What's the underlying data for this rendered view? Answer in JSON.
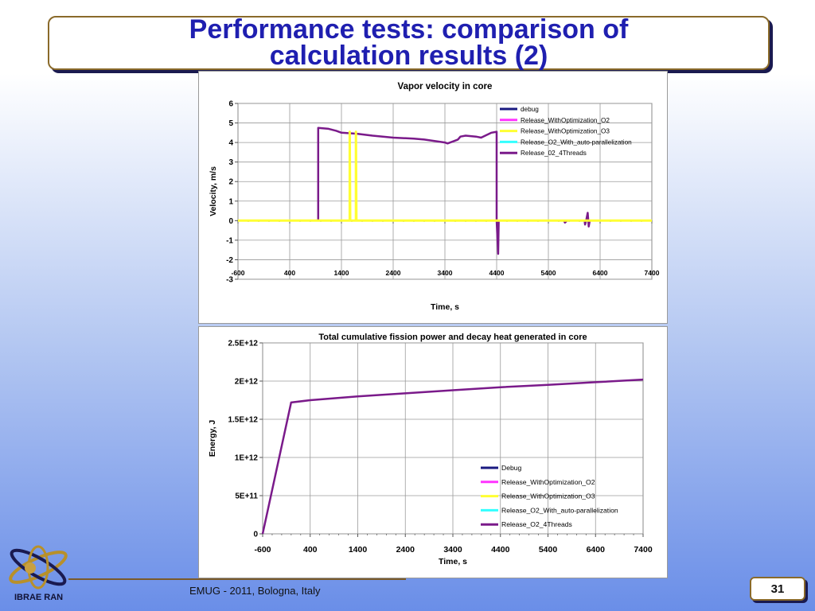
{
  "slide": {
    "title_line1": "Performance tests: comparison of",
    "title_line2": "calculation results (2)",
    "footer": "EMUG - 2011, Bologna, Italy",
    "page_number": "31",
    "logo_text": "IBRAE RAN"
  },
  "colors": {
    "debug": "#1a1a80",
    "o2": "#ff33ff",
    "o3": "#ffff33",
    "autopar": "#33ffff",
    "threads": "#7a1a8a"
  },
  "chart_data": [
    {
      "type": "line",
      "title": "Vapor velocity in core",
      "xlabel": "Time, s",
      "ylabel": "Velocity, m/s",
      "xlim": [
        -600,
        7400
      ],
      "ylim": [
        -3,
        6
      ],
      "xticks": [
        "-600",
        "400",
        "1400",
        "2400",
        "3400",
        "4400",
        "5400",
        "6400",
        "7400"
      ],
      "yticks": [
        "6",
        "5",
        "4",
        "3",
        "2",
        "1",
        "0",
        "-1",
        "-2",
        "-3"
      ],
      "grid": true,
      "legend_position": "top-right",
      "legend": [
        "debug",
        "Release_WithOptimization_O2",
        "Release_WithOptimization_O3",
        "Release_O2_With_auto-parallelization",
        "Release_02_4Threads"
      ],
      "series": [
        {
          "name": "Release_02_4Threads",
          "points": [
            [
              -600,
              0
            ],
            [
              950,
              0
            ],
            [
              950,
              4.75
            ],
            [
              1150,
              4.7
            ],
            [
              1300,
              4.6
            ],
            [
              1400,
              4.5
            ],
            [
              1700,
              4.45
            ],
            [
              2000,
              4.35
            ],
            [
              2400,
              4.25
            ],
            [
              2800,
              4.2
            ],
            [
              3000,
              4.15
            ],
            [
              3400,
              4.0
            ],
            [
              3450,
              3.95
            ],
            [
              3550,
              4.05
            ],
            [
              3650,
              4.15
            ],
            [
              3700,
              4.3
            ],
            [
              3800,
              4.35
            ],
            [
              4000,
              4.3
            ],
            [
              4100,
              4.25
            ],
            [
              4300,
              4.5
            ],
            [
              4400,
              4.55
            ],
            [
              4400,
              0
            ],
            [
              4430,
              -1.7
            ],
            [
              4440,
              0
            ],
            [
              5700,
              0
            ],
            [
              5720,
              -0.1
            ],
            [
              5760,
              0
            ],
            [
              6100,
              0
            ],
            [
              6110,
              -0.2
            ],
            [
              6130,
              0
            ],
            [
              6160,
              0.4
            ],
            [
              6180,
              -0.3
            ],
            [
              6200,
              0
            ],
            [
              7400,
              0
            ]
          ]
        },
        {
          "name": "Release_WithOptimization_O3",
          "points": [
            [
              -600,
              0
            ],
            [
              1560,
              0
            ],
            [
              1560,
              4.55
            ],
            [
              1570,
              0
            ],
            [
              1680,
              0
            ],
            [
              1680,
              4.55
            ],
            [
              1690,
              0
            ],
            [
              7400,
              0
            ]
          ]
        }
      ]
    },
    {
      "type": "line",
      "title": "Total cumulative fission power and decay heat generated in core",
      "xlabel": "Time, s",
      "ylabel": "Energy,  J",
      "xlim": [
        -600,
        7400
      ],
      "ylim": [
        0,
        2500000000000.0
      ],
      "xticks": [
        "-600",
        "400",
        "1400",
        "2400",
        "3400",
        "4400",
        "5400",
        "6400",
        "7400"
      ],
      "yticks": [
        "2.5E+12",
        "2E+12",
        "1.5E+12",
        "1E+12",
        "5E+11",
        "0"
      ],
      "grid": true,
      "legend_position": "bottom-right",
      "legend": [
        "Debug",
        "Release_WithOptimization_O2",
        "Release_WithOptimization_O3",
        "Release_O2_With_auto-parallelization",
        "Release_O2_4Threads"
      ],
      "series": [
        {
          "name": "Release_O2_4Threads",
          "points": [
            [
              -600,
              0
            ],
            [
              0,
              1720000000000.0
            ],
            [
              400,
              1750000000000.0
            ],
            [
              1400,
              1800000000000.0
            ],
            [
              2400,
              1840000000000.0
            ],
            [
              3400,
              1880000000000.0
            ],
            [
              4400,
              1920000000000.0
            ],
            [
              5400,
              1950000000000.0
            ],
            [
              6400,
              1985000000000.0
            ],
            [
              7400,
              2020000000000.0
            ]
          ]
        }
      ]
    }
  ]
}
